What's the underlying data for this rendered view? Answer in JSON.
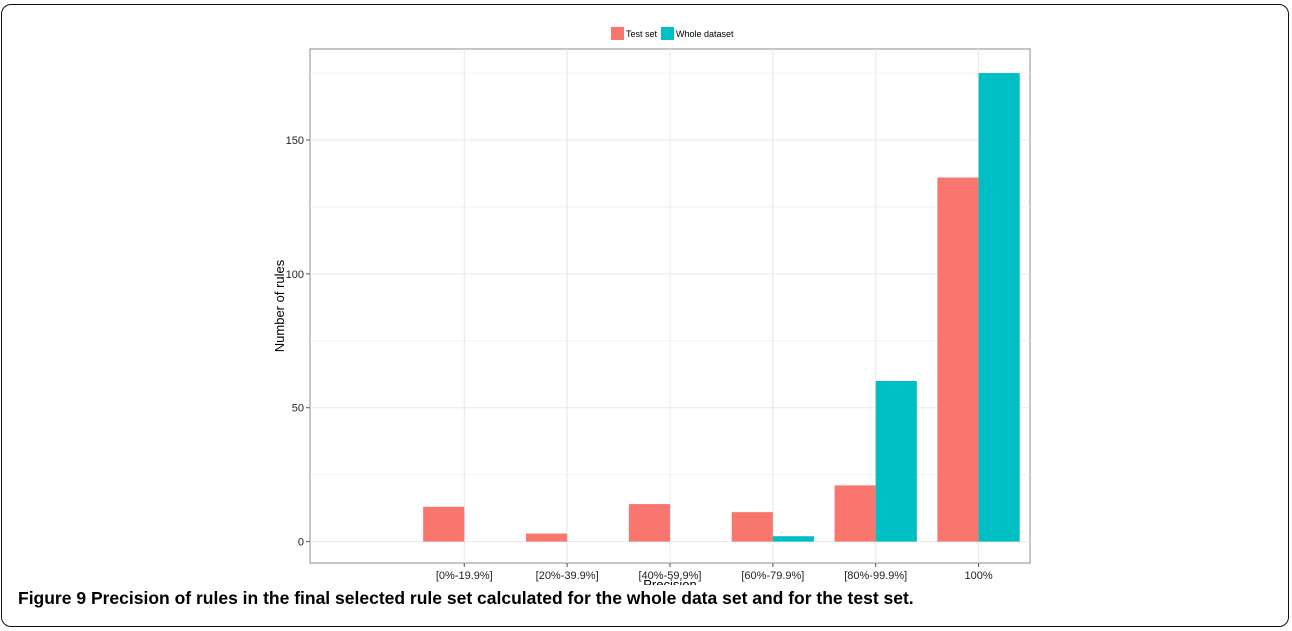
{
  "figure": {
    "label": "Figure 9",
    "caption": "Precision of rules in the final selected rule set calculated for the whole data set and for the test set."
  },
  "chart_data": {
    "type": "bar",
    "title": "",
    "xlabel": "Precision",
    "ylabel": "Number of rules",
    "categories": [
      "[0%-19.9%]",
      "[20%-39.9%]",
      "[40%-59.9%]",
      "[60%-79.9%]",
      "[80%-99.9%]",
      "100%"
    ],
    "series": [
      {
        "name": "Test set",
        "color": "#F8766D",
        "values": [
          13,
          3,
          14,
          11,
          21,
          136
        ]
      },
      {
        "name": "Whole dataset",
        "color": "#00BFC4",
        "values": [
          0,
          0,
          0,
          2,
          60,
          175
        ]
      }
    ],
    "ylim": [
      -8,
      184
    ],
    "yticks": [
      0,
      50,
      100,
      150
    ],
    "grid": true,
    "legend_position": "top"
  }
}
